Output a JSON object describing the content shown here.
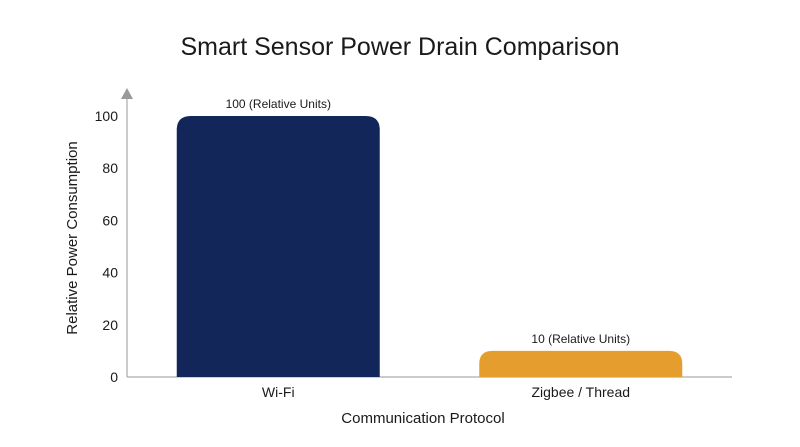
{
  "chart_data": {
    "type": "bar",
    "title": "Smart Sensor Power Drain Comparison",
    "xlabel": "Communication Protocol",
    "ylabel": "Relative Power Consumption",
    "categories": [
      "Wi-Fi",
      "Zigbee / Thread"
    ],
    "values": [
      100,
      10
    ],
    "data_labels": [
      "100 (Relative Units)",
      "10 (Relative Units)"
    ],
    "colors": [
      "#13265a",
      "#e59d2e"
    ],
    "ylim": [
      0,
      100
    ],
    "yticks": [
      0,
      20,
      40,
      60,
      80,
      100
    ],
    "ytick_labels": [
      "0",
      "20",
      "40",
      "60",
      "80",
      "100"
    ],
    "grid": false,
    "legend": "none"
  }
}
